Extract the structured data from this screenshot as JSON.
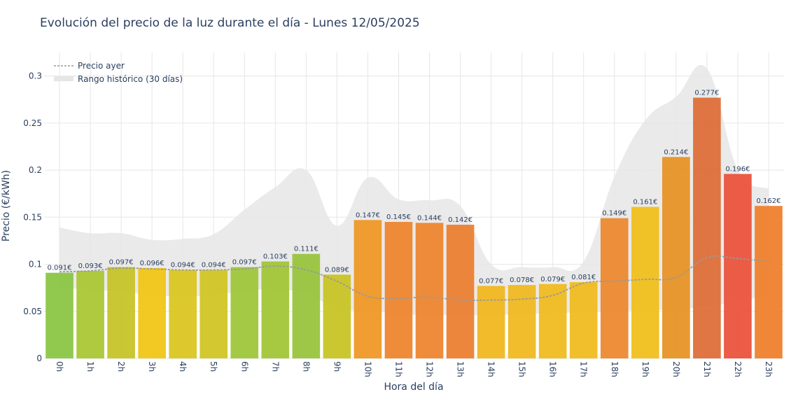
{
  "chart_data": {
    "type": "bar",
    "title": "Evolución del precio de la luz durante el día - Lunes 12/05/2025",
    "xlabel": "Hora del día",
    "ylabel": "Precio (€/kWh)",
    "ylim": [
      0,
      0.325
    ],
    "yticks": [
      "0",
      "0.05",
      "0.1",
      "0.15",
      "0.2",
      "0.25",
      "0.3"
    ],
    "ytick_values": [
      0,
      0.05,
      0.1,
      0.15,
      0.2,
      0.25,
      0.3
    ],
    "grid": true,
    "legend_position": "top-left",
    "categories": [
      "0h",
      "1h",
      "2h",
      "3h",
      "4h",
      "5h",
      "6h",
      "7h",
      "8h",
      "9h",
      "10h",
      "11h",
      "12h",
      "13h",
      "14h",
      "15h",
      "16h",
      "17h",
      "18h",
      "19h",
      "20h",
      "21h",
      "22h",
      "23h"
    ],
    "series": [
      {
        "values": [
          0.091,
          0.093,
          0.097,
          0.096,
          0.094,
          0.094,
          0.097,
          0.103,
          0.111,
          0.089,
          0.147,
          0.145,
          0.144,
          0.142,
          0.077,
          0.078,
          0.079,
          0.081,
          0.149,
          0.161,
          0.214,
          0.277,
          0.196,
          0.162
        ],
        "labels": [
          "0.091€",
          "0.093€",
          "0.097€",
          "0.096€",
          "0.094€",
          "0.094€",
          "0.097€",
          "0.103€",
          "0.111€",
          "0.089€",
          "0.147€",
          "0.145€",
          "0.144€",
          "0.142€",
          "0.077€",
          "0.078€",
          "0.079€",
          "0.081€",
          "0.149€",
          "0.161€",
          "0.214€",
          "0.277€",
          "0.196€",
          "0.162€"
        ],
        "colors": [
          "#88c440",
          "#a8c52e",
          "#c4c222",
          "#f1c40f",
          "#d9c41b",
          "#d0c31e",
          "#9cc535",
          "#9fc432",
          "#96c238",
          "#c7c220",
          "#ef951f",
          "#ed8229",
          "#ed822a",
          "#eb7c2c",
          "#f0b51a",
          "#f0b71a",
          "#f0b81a",
          "#f0ba19",
          "#ec862a",
          "#f0be17",
          "#e69020",
          "#dc6a33",
          "#e94f37",
          "#ef7d27"
        ]
      },
      {
        "name": "Precio ayer",
        "type": "line",
        "color": "#999999",
        "values": [
          0.092,
          0.093,
          0.096,
          0.095,
          0.094,
          0.094,
          0.095,
          0.098,
          0.094,
          0.082,
          0.066,
          0.064,
          0.065,
          0.062,
          0.062,
          0.063,
          0.067,
          0.08,
          0.082,
          0.084,
          0.086,
          0.107,
          0.106,
          0.103
        ]
      },
      {
        "name": "Rango histórico (30 días)",
        "type": "band",
        "color": "#e6e6e6",
        "lower": [
          0.075,
          0.073,
          0.071,
          0.067,
          0.066,
          0.067,
          0.072,
          0.073,
          0.069,
          0.053,
          0.051,
          0.047,
          0.046,
          0.046,
          0.046,
          0.047,
          0.048,
          0.049,
          0.05,
          0.052,
          0.051,
          0.056,
          0.06,
          0.068
        ],
        "upper": [
          0.139,
          0.133,
          0.133,
          0.126,
          0.127,
          0.132,
          0.158,
          0.182,
          0.2,
          0.141,
          0.192,
          0.169,
          0.168,
          0.162,
          0.1,
          0.097,
          0.097,
          0.103,
          0.193,
          0.253,
          0.278,
          0.308,
          0.201,
          0.18
        ]
      }
    ]
  }
}
